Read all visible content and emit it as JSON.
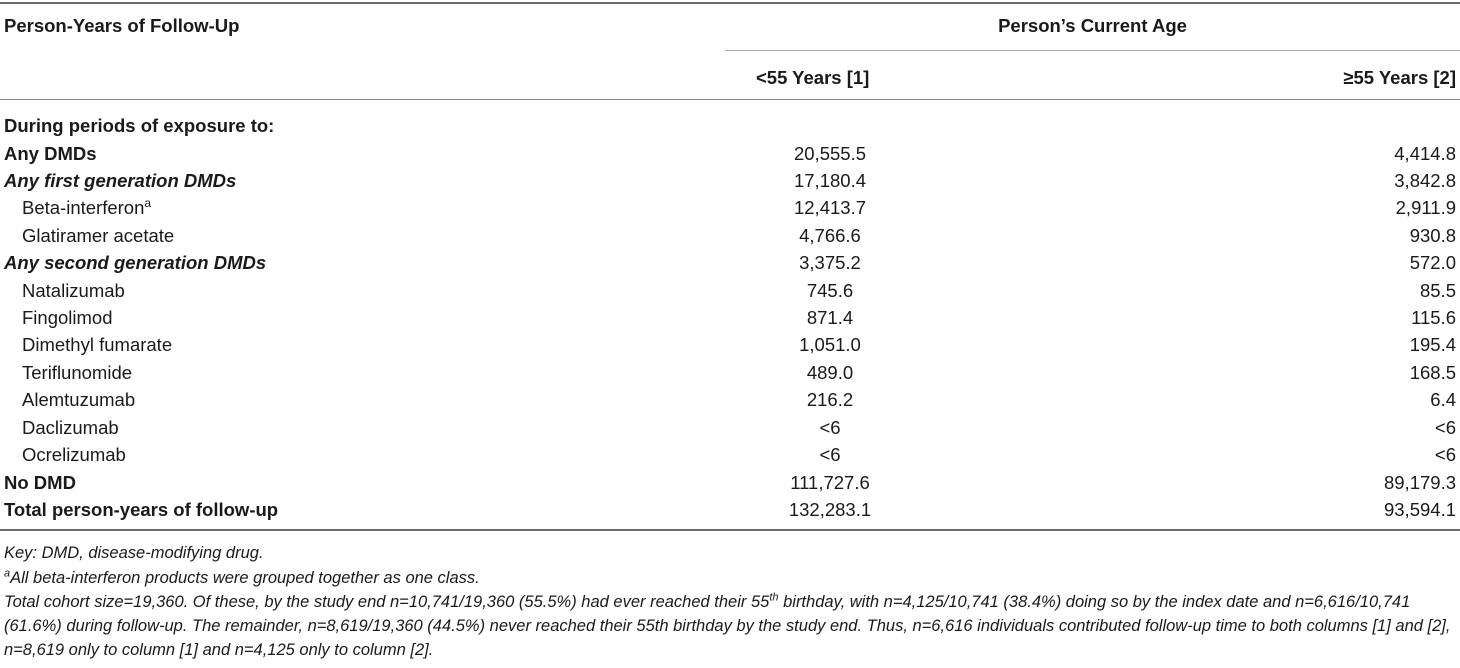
{
  "header": {
    "left_title": "Person-Years of Follow-Up",
    "group_title": "Person’s Current Age",
    "col1": "<55 Years [1]",
    "col2": "≥55 Years [2]"
  },
  "rows": [
    {
      "label": "During periods of exposure to:",
      "v1": "",
      "v2": ""
    },
    {
      "label": "Any DMDs",
      "v1": "20,555.5",
      "v2": "4,414.8"
    },
    {
      "label": "Any first generation DMDs",
      "v1": "17,180.4",
      "v2": "3,842.8"
    },
    {
      "label": "Beta-interferon",
      "sup": "a",
      "v1": "12,413.7",
      "v2": "2,911.9"
    },
    {
      "label": "Glatiramer acetate",
      "v1": "4,766.6",
      "v2": "930.8"
    },
    {
      "label": "Any second generation DMDs",
      "v1": "3,375.2",
      "v2": "572.0"
    },
    {
      "label": "Natalizumab",
      "v1": "745.6",
      "v2": "85.5"
    },
    {
      "label": "Fingolimod",
      "v1": "871.4",
      "v2": "115.6"
    },
    {
      "label": "Dimethyl fumarate",
      "v1": "1,051.0",
      "v2": "195.4"
    },
    {
      "label": "Teriflunomide",
      "v1": "489.0",
      "v2": "168.5"
    },
    {
      "label": "Alemtuzumab",
      "v1": "216.2",
      "v2": "6.4"
    },
    {
      "label": "Daclizumab",
      "v1": "<6",
      "v2": "<6"
    },
    {
      "label": "Ocrelizumab",
      "v1": "<6",
      "v2": "<6"
    },
    {
      "label": "No DMD",
      "v1": "111,727.6",
      "v2": "89,179.3"
    },
    {
      "label": "Total person-years of follow-up",
      "v1": "132,283.1",
      "v2": "93,594.1"
    }
  ],
  "footnotes": {
    "key": "Key: DMD, disease-modifying drug.",
    "a_mark": "a",
    "a_text": "All beta-interferon products were grouped together as one class.",
    "cohort_part1": "Total cohort size=19,360. Of these, by the study end n=10,741/19,360 (55.5%) had ever reached their 55",
    "cohort_sup": "th",
    "cohort_part2": " birthday, with n=4,125/10,741 (38.4%) doing so by the index date and n=6,616/10,741 (61.6%) during follow-up. The remainder, n=8,619/19,360 (44.5%) never reached their 55th birthday by the study end. Thus, n=6,616 individuals contributed follow-up time to both columns [1] and [2], n=8,619 only to column [1] and n=4,125 only to column [2]."
  }
}
